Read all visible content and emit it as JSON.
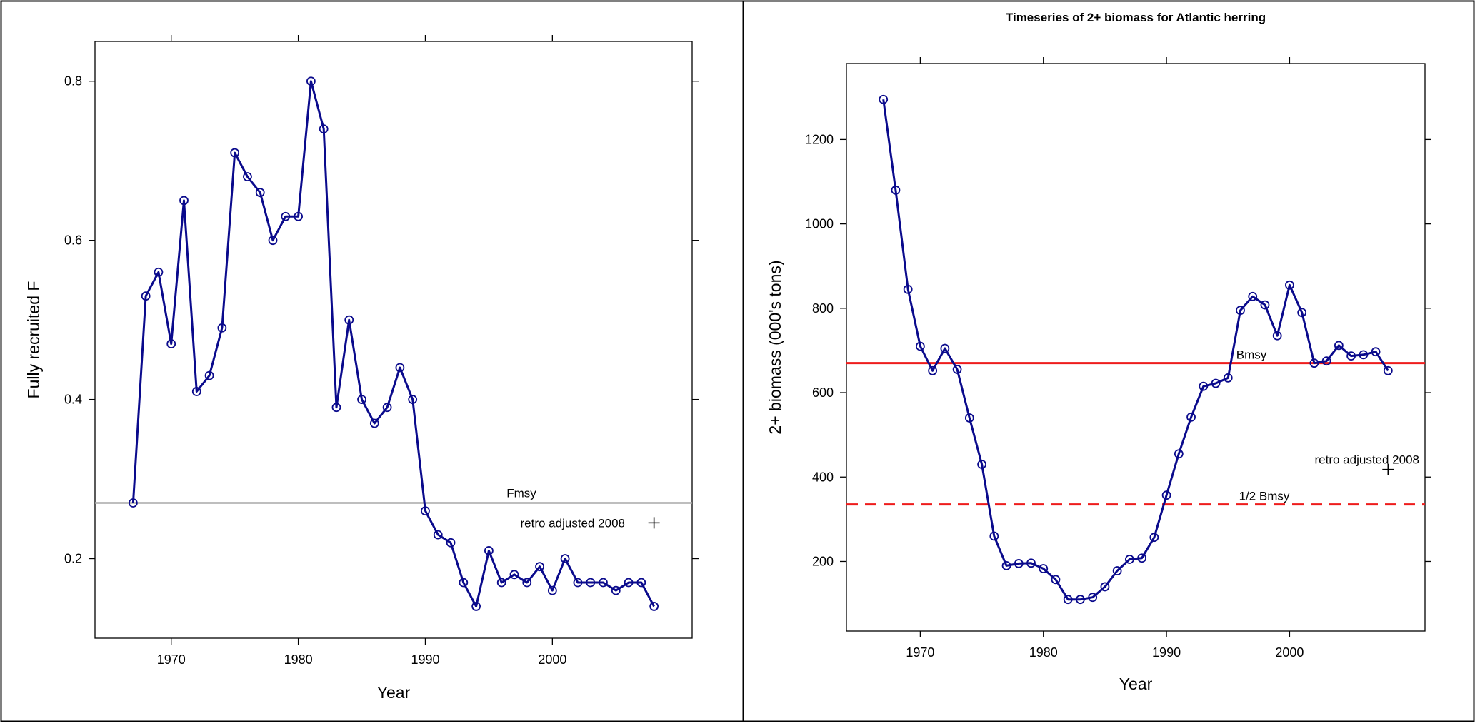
{
  "colors": {
    "series": "#0a0a8c",
    "fmsy_line": "#a8a8a8",
    "bmsy_line": "#ee1c1c",
    "frame": "#000000",
    "background": "#ffffff"
  },
  "chart_data": [
    {
      "type": "line",
      "title": "",
      "xlabel": "Year",
      "ylabel": "Fully recruited F",
      "xlim": [
        1964,
        2011
      ],
      "ylim": [
        0.1,
        0.85
      ],
      "xticks": [
        1970,
        1980,
        1990,
        2000
      ],
      "yticks": [
        0.2,
        0.4,
        0.6,
        0.8
      ],
      "ytick_labels": [
        "0.2",
        "0.4",
        "0.6",
        "0.8"
      ],
      "marker": "open-circle",
      "grid": false,
      "series": [
        {
          "x": [
            1967,
            1968,
            1969,
            1970,
            1971,
            1972,
            1973,
            1974,
            1975,
            1976,
            1977,
            1978,
            1979,
            1980,
            1981,
            1982,
            1983,
            1984,
            1985,
            1986,
            1987,
            1988,
            1989,
            1990,
            1991,
            1992,
            1993,
            1994,
            1995,
            1996,
            1997,
            1998,
            1999,
            2000,
            2001,
            2002,
            2003,
            2004,
            2005,
            2006,
            2007,
            2008
          ],
          "y": [
            0.27,
            0.53,
            0.56,
            0.47,
            0.65,
            0.41,
            0.43,
            0.49,
            0.71,
            0.68,
            0.66,
            0.6,
            0.63,
            0.63,
            0.8,
            0.74,
            0.39,
            0.5,
            0.4,
            0.37,
            0.39,
            0.44,
            0.4,
            0.26,
            0.23,
            0.22,
            0.17,
            0.14,
            0.21,
            0.17,
            0.18,
            0.17,
            0.19,
            0.16,
            0.2,
            0.17,
            0.17,
            0.17,
            0.16,
            0.17,
            0.17,
            0.14
          ]
        }
      ],
      "reference_lines": [
        {
          "label": "Fmsy",
          "y": 0.27,
          "style": "solid"
        }
      ],
      "annotation": {
        "text": "retro adjusted 2008",
        "x": 2008,
        "y": 0.245,
        "marker": "+"
      }
    },
    {
      "type": "line",
      "title": "Timeseries of 2+ biomass for Atlantic herring",
      "xlabel": "Year",
      "ylabel": "2+ biomass (000's tons)",
      "xlim": [
        1964,
        2011
      ],
      "ylim": [
        35,
        1380
      ],
      "xticks": [
        1970,
        1980,
        1990,
        2000
      ],
      "yticks": [
        200,
        400,
        600,
        800,
        1000,
        1200
      ],
      "ytick_labels": [
        "200",
        "400",
        "600",
        "800",
        "1000",
        "1200"
      ],
      "marker": "open-circle",
      "grid": false,
      "series": [
        {
          "x": [
            1967,
            1968,
            1969,
            1970,
            1971,
            1972,
            1973,
            1974,
            1975,
            1976,
            1977,
            1978,
            1979,
            1980,
            1981,
            1982,
            1983,
            1984,
            1985,
            1986,
            1987,
            1988,
            1989,
            1990,
            1991,
            1992,
            1993,
            1994,
            1995,
            1996,
            1997,
            1998,
            1999,
            2000,
            2001,
            2002,
            2003,
            2004,
            2005,
            2006,
            2007,
            2008
          ],
          "y": [
            1295,
            1080,
            845,
            710,
            652,
            705,
            655,
            540,
            430,
            260,
            190,
            195,
            196,
            183,
            157,
            110,
            110,
            115,
            140,
            178,
            205,
            208,
            257,
            357,
            455,
            542,
            615,
            622,
            635,
            795,
            828,
            808,
            735,
            855,
            790,
            670,
            675,
            712,
            687,
            690,
            697,
            652
          ]
        }
      ],
      "reference_lines": [
        {
          "label": "Bmsy",
          "y": 670,
          "style": "solid"
        },
        {
          "label": "1/2 Bmsy",
          "y": 335,
          "style": "dashed"
        }
      ],
      "annotation": {
        "text": "retro adjusted 2008",
        "x": 2008,
        "y": 418,
        "marker": "+"
      }
    }
  ]
}
